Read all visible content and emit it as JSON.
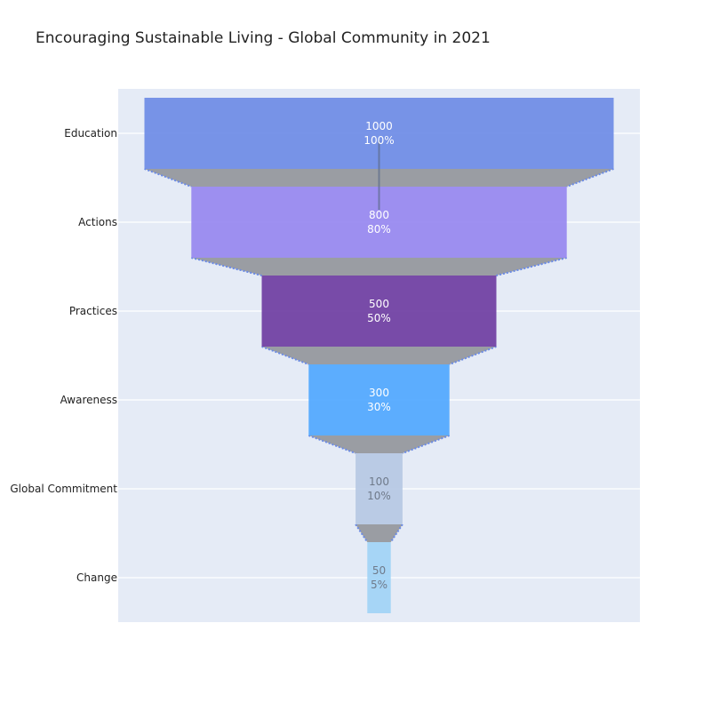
{
  "chart_data": {
    "type": "funnel",
    "title": "Encouraging Sustainable Living - Global Community in 2021",
    "categories": [
      "Education",
      "Actions",
      "Practices",
      "Awareness",
      "Global Commitment",
      "Change"
    ],
    "values": [
      1000,
      800,
      500,
      300,
      100,
      50
    ],
    "percent_of_initial": [
      "100%",
      "80%",
      "50%",
      "30%",
      "10%",
      "5%"
    ],
    "colors": [
      "#6a8ae6",
      "#9585ef",
      "#6b3aa0",
      "#4da6ff",
      "#b5c8e3",
      "#9fd3f6"
    ],
    "value_label_colors": [
      "#ffffff",
      "#ffffff",
      "#ffffff",
      "#ffffff",
      "#6f7a8a",
      "#6f7a8a"
    ],
    "connector_color": "#9a9da3",
    "connector_line_color": "#6a8ae6",
    "plot_background": "#e5ebf6",
    "grid": true
  }
}
